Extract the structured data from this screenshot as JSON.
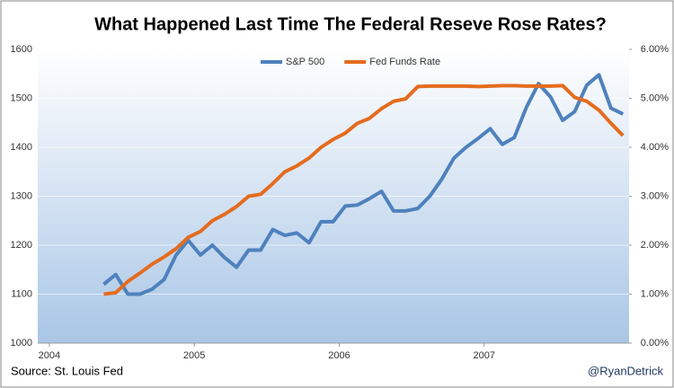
{
  "chart_data": {
    "type": "line",
    "title": "What Happened Last Time The Federal Reseve Rose Rates?",
    "source": "Source:  St. Louis Fed",
    "credit": "@RyanDetrick",
    "x": [
      2004.375,
      2004.458,
      2004.542,
      2004.625,
      2004.708,
      2004.792,
      2004.875,
      2004.958,
      2005.042,
      2005.125,
      2005.208,
      2005.292,
      2005.375,
      2005.458,
      2005.542,
      2005.625,
      2005.708,
      2005.792,
      2005.875,
      2005.958,
      2006.042,
      2006.125,
      2006.208,
      2006.292,
      2006.375,
      2006.458,
      2006.542,
      2006.625,
      2006.708,
      2006.792,
      2006.875,
      2006.958,
      2007.042,
      2007.125,
      2007.208,
      2007.292,
      2007.375,
      2007.458,
      2007.542,
      2007.625,
      2007.708,
      2007.792,
      2007.875,
      2007.958
    ],
    "xlim": [
      2003.92,
      2008.0
    ],
    "xticks": [
      2004,
      2005,
      2006,
      2007
    ],
    "ylim": [
      1000,
      1600
    ],
    "yticks": [
      1000,
      1100,
      1200,
      1300,
      1400,
      1500,
      1600
    ],
    "y2lim": [
      0,
      6
    ],
    "y2ticks": [
      {
        "value": 0,
        "label": "0.00%"
      },
      {
        "value": 1,
        "label": "1.00%"
      },
      {
        "value": 2,
        "label": "2.00%"
      },
      {
        "value": 3,
        "label": "3.00%"
      },
      {
        "value": 4,
        "label": "4.00%"
      },
      {
        "value": 5,
        "label": "5.00%"
      },
      {
        "value": 6,
        "label": "6.00%"
      }
    ],
    "grid": true,
    "legend": "top",
    "series": [
      {
        "name": "S&P 500",
        "color": "#4f81bd",
        "values": [
          1120,
          1140,
          1100,
          1100,
          1110,
          1130,
          1180,
          1210,
          1180,
          1200,
          1175,
          1155,
          1190,
          1190,
          1232,
          1220,
          1225,
          1205,
          1248,
          1248,
          1280,
          1282,
          1295,
          1310,
          1270,
          1270,
          1275,
          1300,
          1335,
          1378,
          1400,
          1418,
          1438,
          1406,
          1420,
          1482,
          1530,
          1503,
          1455,
          1473,
          1527,
          1548,
          1480,
          1468
        ]
      },
      {
        "name": "Fed Funds Rate",
        "color": "#e46c1f",
        "axis": "y2",
        "values": [
          1.0,
          1.03,
          1.26,
          1.43,
          1.61,
          1.76,
          1.93,
          2.16,
          2.28,
          2.5,
          2.63,
          2.79,
          3.0,
          3.04,
          3.26,
          3.5,
          3.62,
          3.78,
          4.0,
          4.16,
          4.29,
          4.49,
          4.59,
          4.79,
          4.94,
          4.99,
          5.24,
          5.25,
          5.25,
          5.25,
          5.25,
          5.24,
          5.25,
          5.26,
          5.26,
          5.25,
          5.25,
          5.25,
          5.26,
          5.02,
          4.94,
          4.76,
          4.49,
          4.24
        ]
      }
    ]
  }
}
